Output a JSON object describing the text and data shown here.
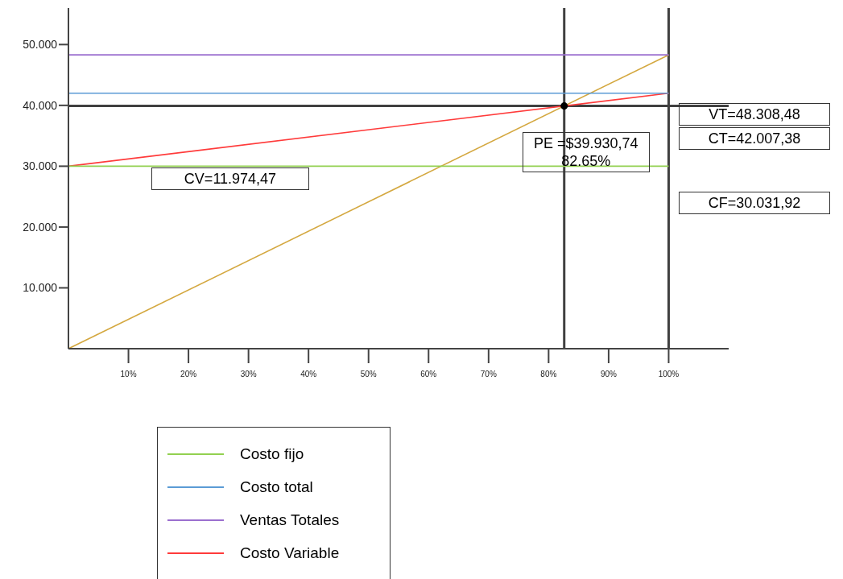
{
  "chart_data": {
    "type": "line",
    "xlim": [
      0,
      110
    ],
    "ylim": [
      0,
      56000
    ],
    "xticks": [
      {
        "value": 10,
        "label": "10%"
      },
      {
        "value": 20,
        "label": "20%"
      },
      {
        "value": 30,
        "label": "30%"
      },
      {
        "value": 40,
        "label": "40%"
      },
      {
        "value": 50,
        "label": "50%"
      },
      {
        "value": 60,
        "label": "60%"
      },
      {
        "value": 70,
        "label": "70%"
      },
      {
        "value": 80,
        "label": "80%"
      },
      {
        "value": 90,
        "label": "90%"
      },
      {
        "value": 100,
        "label": "100%"
      }
    ],
    "yticks": [
      {
        "value": 10000,
        "label": "10.000"
      },
      {
        "value": 20000,
        "label": "20.000"
      },
      {
        "value": 30000,
        "label": "30.000"
      },
      {
        "value": 40000,
        "label": "40.000"
      },
      {
        "value": 50000,
        "label": "50.000"
      }
    ],
    "series": [
      {
        "name": "Costo fijo",
        "color": "#92d050",
        "x": [
          0,
          100
        ],
        "values": [
          30000,
          30000
        ]
      },
      {
        "name": "Costo total",
        "color": "#5b9bd5",
        "x": [
          0,
          100
        ],
        "values": [
          42000,
          42000
        ]
      },
      {
        "name": "Ventas Totales",
        "color": "#9b6fcf",
        "x": [
          0,
          100
        ],
        "values": [
          48300,
          48300
        ]
      },
      {
        "name": "Costo Variable",
        "color": "#ff3b3b",
        "x": [
          0,
          100
        ],
        "values": [
          30000,
          42000
        ]
      },
      {
        "color": "#d4a840",
        "x": [
          0,
          100
        ],
        "values": [
          0,
          48300
        ]
      },
      {
        "type": "scatter",
        "color": "#000000",
        "x": [
          82.6
        ],
        "values": [
          39900
        ]
      }
    ],
    "ref_lines": [
      {
        "axis": "y",
        "value": 39900,
        "color": "#404040"
      },
      {
        "axis": "x",
        "value": 82.6,
        "color": "#404040"
      },
      {
        "axis": "x",
        "value": 100,
        "color": "#404040"
      }
    ],
    "annotations": [
      {
        "text": "PE =$39.930,74\n82.65%",
        "x": 82.6,
        "y": 39900
      },
      "CV=11.974,47",
      "VT=48.308,48",
      "CT=42.007,38",
      "CF=30.031,92"
    ],
    "legend": "bottom"
  }
}
